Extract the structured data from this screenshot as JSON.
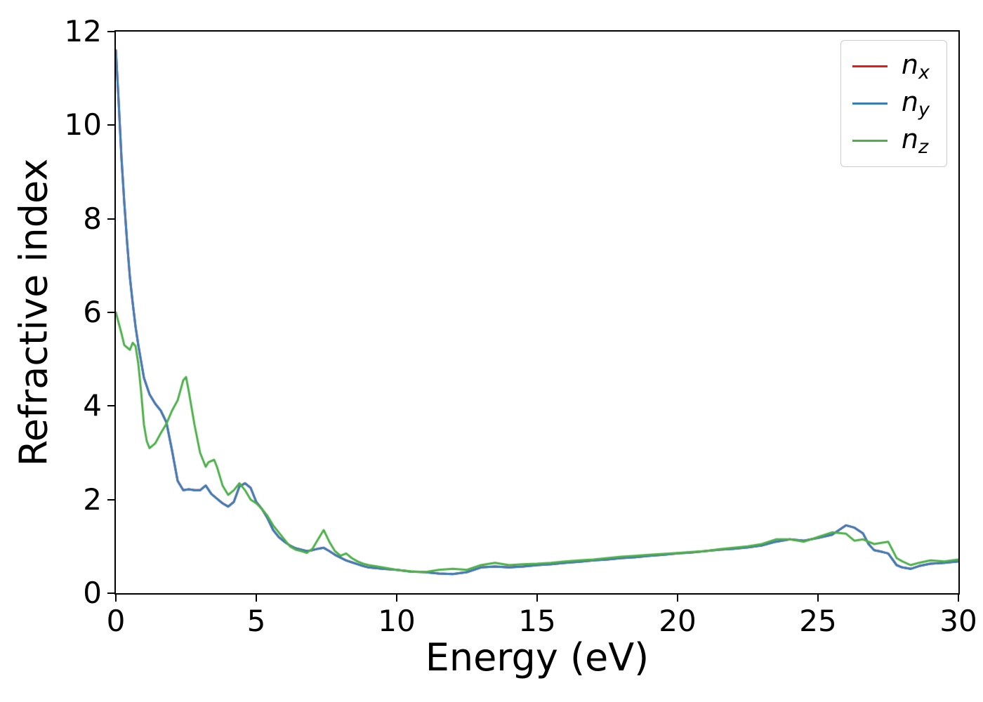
{
  "figure": {
    "background": "#ffffff",
    "spine_color": "#000000",
    "tick_color": "#000000"
  },
  "chart_data": {
    "type": "line",
    "title": "",
    "xlabel": "Energy (eV)",
    "ylabel": "Refractive index",
    "xlim": [
      0,
      30
    ],
    "ylim": [
      0,
      12
    ],
    "xticks": [
      0,
      5,
      10,
      15,
      20,
      25,
      30
    ],
    "yticks": [
      0,
      2,
      4,
      6,
      8,
      10,
      12
    ],
    "grid": false,
    "legend_position": "upper right",
    "series": [
      {
        "name": "n_x",
        "label": {
          "base": "n",
          "sub": "x"
        },
        "color": "#e41a1c",
        "points": [
          [
            0,
            11.6
          ],
          [
            0.1,
            10.5
          ],
          [
            0.2,
            9.3
          ],
          [
            0.3,
            8.35
          ],
          [
            0.4,
            7.5
          ],
          [
            0.5,
            6.75
          ],
          [
            0.6,
            6.2
          ],
          [
            0.7,
            5.7
          ],
          [
            0.8,
            5.3
          ],
          [
            0.9,
            4.95
          ],
          [
            1,
            4.6
          ],
          [
            1.2,
            4.25
          ],
          [
            1.4,
            4.05
          ],
          [
            1.6,
            3.9
          ],
          [
            1.8,
            3.65
          ],
          [
            2,
            3.05
          ],
          [
            2.2,
            2.4
          ],
          [
            2.4,
            2.2
          ],
          [
            2.6,
            2.22
          ],
          [
            2.8,
            2.2
          ],
          [
            3,
            2.2
          ],
          [
            3.2,
            2.3
          ],
          [
            3.4,
            2.12
          ],
          [
            3.6,
            2.02
          ],
          [
            3.8,
            1.92
          ],
          [
            4,
            1.85
          ],
          [
            4.2,
            1.95
          ],
          [
            4.4,
            2.28
          ],
          [
            4.6,
            2.35
          ],
          [
            4.8,
            2.25
          ],
          [
            5,
            1.95
          ],
          [
            5.2,
            1.8
          ],
          [
            5.4,
            1.6
          ],
          [
            5.6,
            1.35
          ],
          [
            5.8,
            1.2
          ],
          [
            6,
            1.1
          ],
          [
            6.2,
            1.02
          ],
          [
            6.4,
            0.96
          ],
          [
            6.6,
            0.93
          ],
          [
            6.8,
            0.9
          ],
          [
            7,
            0.92
          ],
          [
            7.2,
            0.95
          ],
          [
            7.4,
            0.97
          ],
          [
            7.6,
            0.9
          ],
          [
            7.8,
            0.82
          ],
          [
            8,
            0.76
          ],
          [
            8.2,
            0.7
          ],
          [
            8.4,
            0.66
          ],
          [
            8.6,
            0.62
          ],
          [
            8.8,
            0.58
          ],
          [
            9,
            0.55
          ],
          [
            9.5,
            0.52
          ],
          [
            10,
            0.5
          ],
          [
            10.5,
            0.46
          ],
          [
            11,
            0.45
          ],
          [
            11.5,
            0.42
          ],
          [
            12,
            0.41
          ],
          [
            12.5,
            0.45
          ],
          [
            13,
            0.55
          ],
          [
            13.5,
            0.57
          ],
          [
            14,
            0.55
          ],
          [
            14.5,
            0.57
          ],
          [
            15,
            0.6
          ],
          [
            15.5,
            0.62
          ],
          [
            16,
            0.65
          ],
          [
            16.5,
            0.67
          ],
          [
            17,
            0.7
          ],
          [
            17.5,
            0.72
          ],
          [
            18,
            0.75
          ],
          [
            18.5,
            0.77
          ],
          [
            19,
            0.8
          ],
          [
            19.5,
            0.82
          ],
          [
            20,
            0.85
          ],
          [
            20.5,
            0.87
          ],
          [
            21,
            0.9
          ],
          [
            21.5,
            0.93
          ],
          [
            22,
            0.95
          ],
          [
            22.5,
            0.98
          ],
          [
            23,
            1.02
          ],
          [
            23.5,
            1.1
          ],
          [
            24,
            1.15
          ],
          [
            24.5,
            1.12
          ],
          [
            25,
            1.18
          ],
          [
            25.5,
            1.25
          ],
          [
            26,
            1.45
          ],
          [
            26.3,
            1.4
          ],
          [
            26.6,
            1.28
          ],
          [
            26.8,
            1.05
          ],
          [
            27,
            0.92
          ],
          [
            27.3,
            0.88
          ],
          [
            27.5,
            0.85
          ],
          [
            27.8,
            0.6
          ],
          [
            28,
            0.55
          ],
          [
            28.3,
            0.52
          ],
          [
            28.6,
            0.58
          ],
          [
            29,
            0.63
          ],
          [
            29.5,
            0.65
          ],
          [
            30,
            0.68
          ]
        ]
      },
      {
        "name": "n_y",
        "label": {
          "base": "n",
          "sub": "y"
        },
        "color": "#377eb8",
        "points": [
          [
            0,
            11.6
          ],
          [
            0.1,
            10.5
          ],
          [
            0.2,
            9.3
          ],
          [
            0.3,
            8.35
          ],
          [
            0.4,
            7.5
          ],
          [
            0.5,
            6.75
          ],
          [
            0.6,
            6.2
          ],
          [
            0.7,
            5.7
          ],
          [
            0.8,
            5.3
          ],
          [
            0.9,
            4.95
          ],
          [
            1,
            4.6
          ],
          [
            1.2,
            4.25
          ],
          [
            1.4,
            4.05
          ],
          [
            1.6,
            3.9
          ],
          [
            1.8,
            3.65
          ],
          [
            2,
            3.05
          ],
          [
            2.2,
            2.4
          ],
          [
            2.4,
            2.2
          ],
          [
            2.6,
            2.22
          ],
          [
            2.8,
            2.2
          ],
          [
            3,
            2.2
          ],
          [
            3.2,
            2.3
          ],
          [
            3.4,
            2.12
          ],
          [
            3.6,
            2.02
          ],
          [
            3.8,
            1.92
          ],
          [
            4,
            1.85
          ],
          [
            4.2,
            1.95
          ],
          [
            4.4,
            2.28
          ],
          [
            4.6,
            2.35
          ],
          [
            4.8,
            2.25
          ],
          [
            5,
            1.95
          ],
          [
            5.2,
            1.8
          ],
          [
            5.4,
            1.6
          ],
          [
            5.6,
            1.35
          ],
          [
            5.8,
            1.2
          ],
          [
            6,
            1.1
          ],
          [
            6.2,
            1.02
          ],
          [
            6.4,
            0.96
          ],
          [
            6.6,
            0.93
          ],
          [
            6.8,
            0.9
          ],
          [
            7,
            0.92
          ],
          [
            7.2,
            0.95
          ],
          [
            7.4,
            0.97
          ],
          [
            7.6,
            0.9
          ],
          [
            7.8,
            0.82
          ],
          [
            8,
            0.76
          ],
          [
            8.2,
            0.7
          ],
          [
            8.4,
            0.66
          ],
          [
            8.6,
            0.62
          ],
          [
            8.8,
            0.58
          ],
          [
            9,
            0.55
          ],
          [
            9.5,
            0.52
          ],
          [
            10,
            0.5
          ],
          [
            10.5,
            0.46
          ],
          [
            11,
            0.45
          ],
          [
            11.5,
            0.42
          ],
          [
            12,
            0.41
          ],
          [
            12.5,
            0.45
          ],
          [
            13,
            0.55
          ],
          [
            13.5,
            0.57
          ],
          [
            14,
            0.55
          ],
          [
            14.5,
            0.57
          ],
          [
            15,
            0.6
          ],
          [
            15.5,
            0.62
          ],
          [
            16,
            0.65
          ],
          [
            16.5,
            0.67
          ],
          [
            17,
            0.7
          ],
          [
            17.5,
            0.72
          ],
          [
            18,
            0.75
          ],
          [
            18.5,
            0.77
          ],
          [
            19,
            0.8
          ],
          [
            19.5,
            0.82
          ],
          [
            20,
            0.85
          ],
          [
            20.5,
            0.87
          ],
          [
            21,
            0.9
          ],
          [
            21.5,
            0.93
          ],
          [
            22,
            0.95
          ],
          [
            22.5,
            0.98
          ],
          [
            23,
            1.02
          ],
          [
            23.5,
            1.1
          ],
          [
            24,
            1.15
          ],
          [
            24.5,
            1.12
          ],
          [
            25,
            1.18
          ],
          [
            25.5,
            1.25
          ],
          [
            26,
            1.45
          ],
          [
            26.3,
            1.4
          ],
          [
            26.6,
            1.28
          ],
          [
            26.8,
            1.05
          ],
          [
            27,
            0.92
          ],
          [
            27.3,
            0.88
          ],
          [
            27.5,
            0.85
          ],
          [
            27.8,
            0.6
          ],
          [
            28,
            0.55
          ],
          [
            28.3,
            0.52
          ],
          [
            28.6,
            0.58
          ],
          [
            29,
            0.63
          ],
          [
            29.5,
            0.65
          ],
          [
            30,
            0.68
          ]
        ]
      },
      {
        "name": "n_z",
        "label": {
          "base": "n",
          "sub": "z"
        },
        "color": "#4daf4a",
        "points": [
          [
            0,
            6.0
          ],
          [
            0.2,
            5.55
          ],
          [
            0.3,
            5.3
          ],
          [
            0.4,
            5.25
          ],
          [
            0.5,
            5.2
          ],
          [
            0.6,
            5.35
          ],
          [
            0.7,
            5.28
          ],
          [
            0.8,
            4.9
          ],
          [
            0.9,
            4.3
          ],
          [
            1,
            3.6
          ],
          [
            1.1,
            3.25
          ],
          [
            1.2,
            3.1
          ],
          [
            1.4,
            3.2
          ],
          [
            1.6,
            3.42
          ],
          [
            1.8,
            3.62
          ],
          [
            2,
            3.9
          ],
          [
            2.2,
            4.12
          ],
          [
            2.4,
            4.55
          ],
          [
            2.5,
            4.62
          ],
          [
            2.6,
            4.3
          ],
          [
            2.8,
            3.6
          ],
          [
            3,
            3.0
          ],
          [
            3.2,
            2.7
          ],
          [
            3.3,
            2.8
          ],
          [
            3.5,
            2.85
          ],
          [
            3.6,
            2.7
          ],
          [
            3.8,
            2.3
          ],
          [
            4,
            2.1
          ],
          [
            4.2,
            2.2
          ],
          [
            4.4,
            2.35
          ],
          [
            4.6,
            2.2
          ],
          [
            4.8,
            2.0
          ],
          [
            5,
            1.92
          ],
          [
            5.2,
            1.8
          ],
          [
            5.4,
            1.65
          ],
          [
            5.6,
            1.45
          ],
          [
            5.8,
            1.3
          ],
          [
            6,
            1.15
          ],
          [
            6.2,
            1.0
          ],
          [
            6.4,
            0.93
          ],
          [
            6.6,
            0.9
          ],
          [
            6.8,
            0.86
          ],
          [
            7,
            0.95
          ],
          [
            7.2,
            1.15
          ],
          [
            7.4,
            1.35
          ],
          [
            7.6,
            1.1
          ],
          [
            7.8,
            0.9
          ],
          [
            8,
            0.8
          ],
          [
            8.2,
            0.85
          ],
          [
            8.4,
            0.75
          ],
          [
            8.6,
            0.68
          ],
          [
            8.8,
            0.63
          ],
          [
            9,
            0.6
          ],
          [
            9.5,
            0.55
          ],
          [
            10,
            0.5
          ],
          [
            10.5,
            0.47
          ],
          [
            11,
            0.45
          ],
          [
            11.5,
            0.5
          ],
          [
            12,
            0.52
          ],
          [
            12.5,
            0.5
          ],
          [
            13,
            0.6
          ],
          [
            13.5,
            0.65
          ],
          [
            14,
            0.6
          ],
          [
            14.5,
            0.62
          ],
          [
            15,
            0.63
          ],
          [
            15.5,
            0.65
          ],
          [
            16,
            0.68
          ],
          [
            16.5,
            0.7
          ],
          [
            17,
            0.72
          ],
          [
            17.5,
            0.75
          ],
          [
            18,
            0.78
          ],
          [
            18.5,
            0.8
          ],
          [
            19,
            0.82
          ],
          [
            19.5,
            0.84
          ],
          [
            20,
            0.86
          ],
          [
            20.5,
            0.88
          ],
          [
            21,
            0.9
          ],
          [
            21.5,
            0.94
          ],
          [
            22,
            0.97
          ],
          [
            22.5,
            1.0
          ],
          [
            23,
            1.05
          ],
          [
            23.5,
            1.15
          ],
          [
            24,
            1.15
          ],
          [
            24.5,
            1.1
          ],
          [
            25,
            1.2
          ],
          [
            25.5,
            1.3
          ],
          [
            26,
            1.27
          ],
          [
            26.3,
            1.12
          ],
          [
            26.6,
            1.15
          ],
          [
            26.8,
            1.1
          ],
          [
            27,
            1.05
          ],
          [
            27.3,
            1.08
          ],
          [
            27.5,
            1.1
          ],
          [
            27.8,
            0.75
          ],
          [
            28,
            0.68
          ],
          [
            28.3,
            0.6
          ],
          [
            28.6,
            0.65
          ],
          [
            29,
            0.7
          ],
          [
            29.5,
            0.68
          ],
          [
            30,
            0.72
          ]
        ]
      }
    ]
  }
}
